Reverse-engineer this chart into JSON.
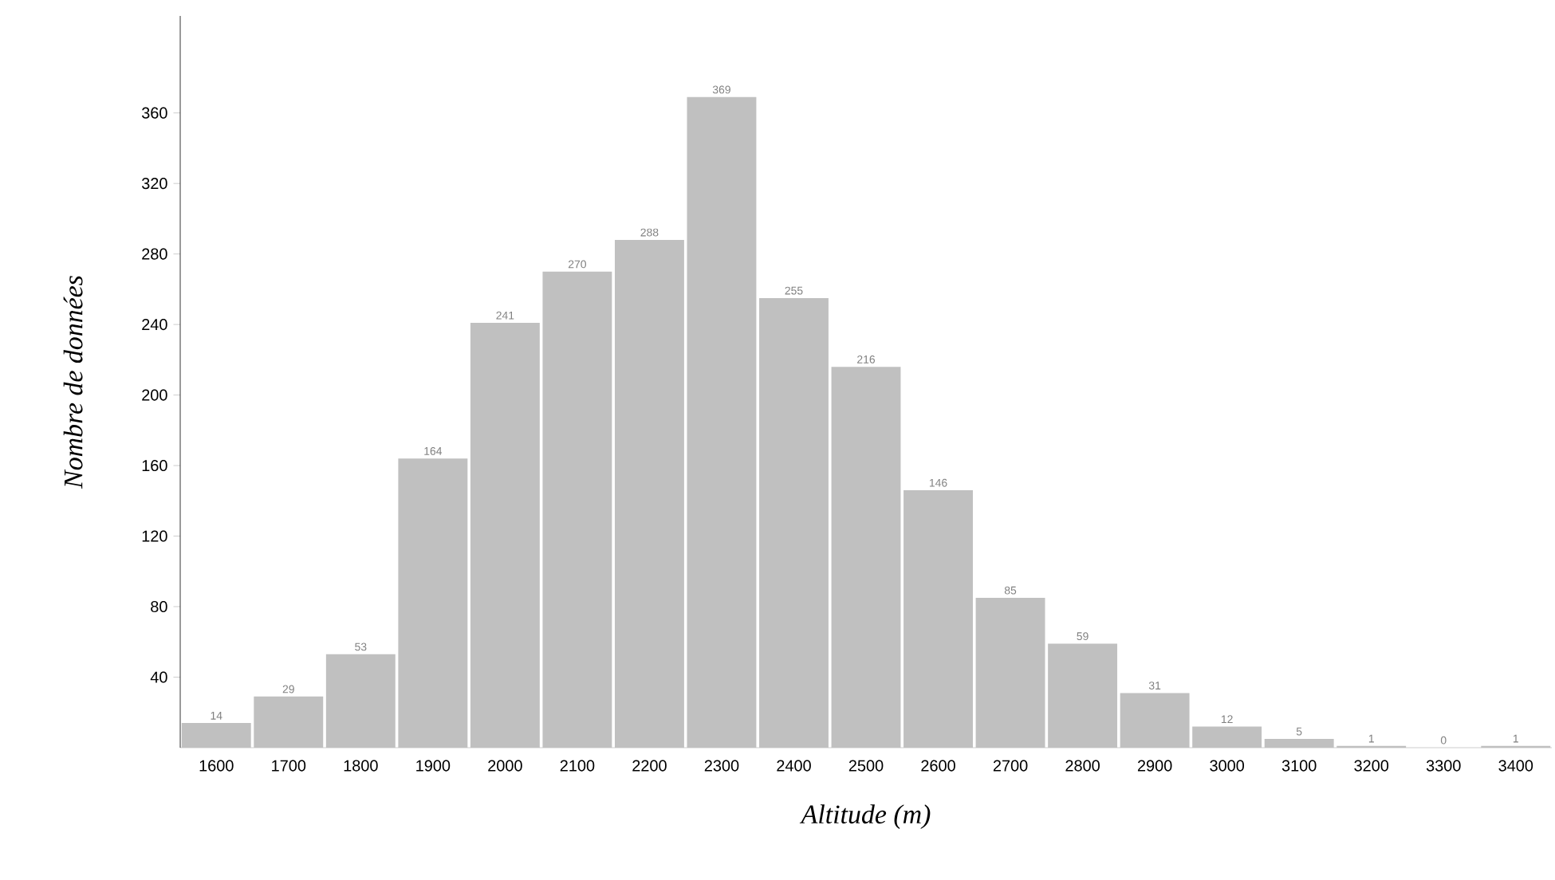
{
  "chart_data": {
    "type": "bar",
    "xlabel": "Altitude (m)",
    "ylabel": "Nombre de données",
    "categories": [
      "1600",
      "1700",
      "1800",
      "1900",
      "2000",
      "2100",
      "2200",
      "2300",
      "2400",
      "2500",
      "2600",
      "2700",
      "2800",
      "2900",
      "3000",
      "3100",
      "3200",
      "3300",
      "3400"
    ],
    "values": [
      14,
      29,
      53,
      164,
      241,
      270,
      288,
      369,
      255,
      216,
      146,
      85,
      59,
      31,
      12,
      5,
      1,
      0,
      1
    ],
    "color": "#c0c0c0",
    "data_labels": true,
    "ylim": [
      0,
      415
    ],
    "yticks": [
      40,
      80,
      120,
      160,
      200,
      240,
      280,
      320,
      360
    ]
  }
}
